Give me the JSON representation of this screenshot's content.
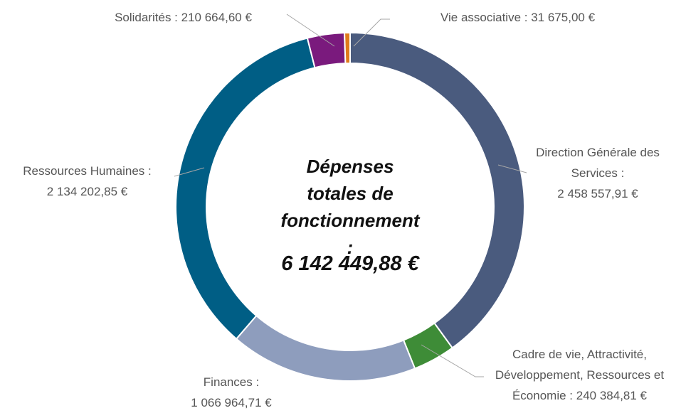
{
  "chart_data": {
    "type": "donut",
    "categories": [
      "Direction Générale des Services :",
      "Cadre de vie, Attractivité, Développement, Ressources et Économie :",
      "Finances :",
      "Ressources Humaines :",
      "Solidarités :",
      "Vie associative :"
    ],
    "values": [
      2458557.91,
      240384.81,
      1066964.71,
      2134202.85,
      210664.6,
      31675.0
    ],
    "value_labels": [
      "2 458 557,91 €",
      "240 384,81 €",
      "1 066 964,71 €",
      "2 134 202,85 €",
      "210 664,60 €",
      "31 675,00 €"
    ],
    "colors": [
      "#4a5b7e",
      "#3e8c37",
      "#8e9dbd",
      "#005e85",
      "#7a1a7d",
      "#e07b1b"
    ],
    "center_title": "Dépenses totales de fonctionnement :",
    "center_value": "6 142 449,88 €"
  }
}
